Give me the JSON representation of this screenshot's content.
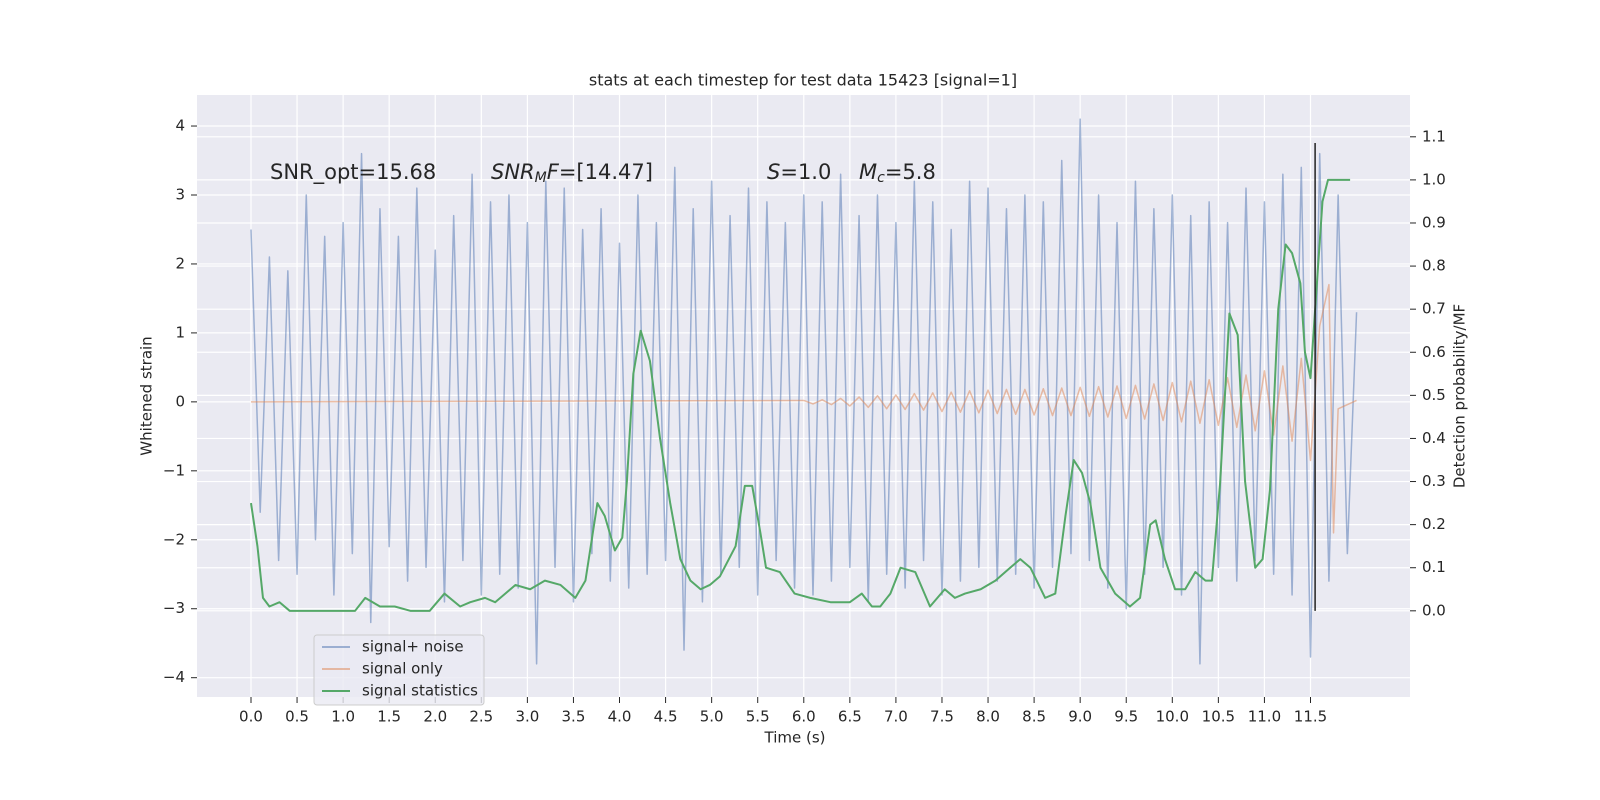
{
  "chart_data": {
    "type": "line",
    "title": "stats at each timestep for test data 15423 [signal=1]",
    "xlabel": "Time (s)",
    "ylabel": "Whitened strain",
    "y2label": "Detection probability/MF",
    "xlim": [
      -0.586,
      12.58
    ],
    "ylim": [
      -4.28,
      4.45
    ],
    "y2lim": [
      -0.2,
      1.197
    ],
    "grid": true,
    "legend": "lower left",
    "xticks": [
      {
        "value": 0,
        "label": "0.0"
      },
      0.5,
      {
        "value": 1,
        "label": "1.0"
      },
      1.5,
      {
        "value": 2,
        "label": "2.0"
      },
      2.5,
      {
        "value": 3,
        "label": "3.0"
      },
      3.5,
      {
        "value": 4,
        "label": "4.0"
      },
      4.5,
      {
        "value": 5,
        "label": "5.0"
      },
      5.5,
      {
        "value": 6,
        "label": "6.0"
      },
      6.5,
      {
        "value": 7,
        "label": "7.0"
      },
      7.5,
      {
        "value": 8,
        "label": "8.0"
      },
      8.5,
      {
        "value": 9,
        "label": "9.0"
      },
      9.5,
      {
        "value": 10,
        "label": "10.0"
      },
      10.5,
      {
        "value": 11,
        "label": "11.0"
      },
      11.5
    ],
    "yticks": [
      {
        "value": -4,
        "label": "−4"
      },
      {
        "value": -3,
        "label": "−3"
      },
      {
        "value": -2,
        "label": "−2"
      },
      {
        "value": -1,
        "label": "−1"
      },
      0,
      1,
      2,
      3,
      4
    ],
    "y2ticks": [
      {
        "value": 0,
        "label": "0.0"
      },
      0.1,
      0.2,
      0.3,
      0.4,
      0.5,
      0.6,
      0.7,
      0.8,
      0.9,
      {
        "value": 1,
        "label": "1.0"
      },
      1.1
    ],
    "annotations": [
      [
        {
          "text": "SNR_opt=15.68",
          "style": "normal"
        }
      ],
      [
        {
          "text": "SNR",
          "style": "italic"
        },
        {
          "text": "M",
          "style": "sub"
        },
        {
          "text": "F",
          "style": "italic"
        },
        {
          "text": "=[14.47]",
          "style": "normal"
        }
      ],
      [
        {
          "text": "S",
          "style": "italic"
        },
        {
          "text": "=1.0",
          "style": "normal"
        }
      ],
      [
        {
          "text": "M",
          "style": "italic"
        },
        {
          "text": "c",
          "style": "sub"
        },
        {
          "text": "=5.8",
          "style": "normal"
        }
      ]
    ],
    "vline_x": 11.55,
    "series": [
      {
        "name": "signal+ noise",
        "color": "#4c72b0",
        "opacity": 0.5,
        "x": [
          0,
          0.1,
          0.2,
          0.3,
          0.4,
          0.5,
          0.6,
          0.7,
          0.8,
          0.9,
          1,
          1.1,
          1.2,
          1.3,
          1.4,
          1.5,
          1.6,
          1.7,
          1.8,
          1.9,
          2,
          2.1,
          2.2,
          2.3,
          2.4,
          2.5,
          2.6,
          2.7,
          2.8,
          2.9,
          3,
          3.1,
          3.2,
          3.3,
          3.4,
          3.5,
          3.6,
          3.7,
          3.8,
          3.9,
          4,
          4.1,
          4.2,
          4.3,
          4.4,
          4.5,
          4.6,
          4.7,
          4.8,
          4.9,
          5,
          5.1,
          5.2,
          5.3,
          5.4,
          5.5,
          5.6,
          5.7,
          5.8,
          5.9,
          6,
          6.1,
          6.2,
          6.3,
          6.4,
          6.5,
          6.6,
          6.7,
          6.8,
          6.9,
          7,
          7.1,
          7.2,
          7.3,
          7.4,
          7.5,
          7.6,
          7.7,
          7.8,
          7.9,
          8,
          8.1,
          8.2,
          8.3,
          8.4,
          8.5,
          8.6,
          8.7,
          8.8,
          8.9,
          9,
          9.1,
          9.2,
          9.3,
          9.4,
          9.5,
          9.6,
          9.7,
          9.8,
          9.9,
          10,
          10.1,
          10.2,
          10.3,
          10.4,
          10.5,
          10.6,
          10.7,
          10.8,
          10.9,
          11,
          11.1,
          11.2,
          11.3,
          11.4,
          11.5,
          11.6,
          11.7,
          11.8,
          11.9,
          12
        ],
        "values": [
          2.5,
          -1.6,
          2.1,
          -2.3,
          1.9,
          -2.5,
          3.0,
          -2.0,
          2.4,
          -2.8,
          2.6,
          -2.2,
          3.6,
          -3.2,
          2.8,
          -2.1,
          2.4,
          -2.6,
          3.1,
          -2.4,
          2.2,
          -2.9,
          2.7,
          -2.3,
          3.3,
          -2.8,
          2.9,
          -2.5,
          3.0,
          -2.7,
          2.6,
          -3.8,
          3.2,
          -2.4,
          3.1,
          -2.9,
          2.5,
          -2.2,
          2.8,
          -2.6,
          2.3,
          -2.7,
          3.0,
          -2.5,
          2.6,
          -2.3,
          3.4,
          -3.6,
          2.8,
          -2.9,
          3.2,
          -2.5,
          2.7,
          -2.4,
          3.1,
          -2.8,
          2.9,
          -2.3,
          2.6,
          -2.7,
          3.0,
          -2.8,
          2.9,
          -2.6,
          3.3,
          -2.4,
          2.7,
          -2.9,
          3.0,
          -2.5,
          2.6,
          -2.7,
          3.2,
          -2.3,
          2.9,
          -2.8,
          2.5,
          -2.6,
          3.2,
          -2.4,
          3.1,
          -2.6,
          2.8,
          -2.5,
          3.0,
          -2.7,
          2.9,
          -2.4,
          3.5,
          -2.2,
          4.1,
          -2.3,
          3.0,
          -2.7,
          2.6,
          -3.0,
          3.2,
          -2.5,
          2.8,
          -2.4,
          3.0,
          -2.8,
          2.7,
          -3.8,
          2.9,
          -2.4,
          2.6,
          -2.6,
          3.1,
          -2.3,
          2.9,
          -2.5,
          3.3,
          -2.8,
          3.4,
          -3.7,
          3.6,
          -2.6,
          3.0,
          -2.2,
          1.3
        ]
      },
      {
        "name": "signal only",
        "color": "#dd8452",
        "opacity": 0.5,
        "x": [
          0,
          6,
          6.1,
          6.2,
          6.3,
          6.4,
          6.5,
          6.6,
          6.7,
          6.8,
          6.9,
          7,
          7.1,
          7.2,
          7.3,
          7.4,
          7.5,
          7.6,
          7.7,
          7.8,
          7.9,
          8,
          8.1,
          8.2,
          8.3,
          8.4,
          8.5,
          8.6,
          8.7,
          8.8,
          8.9,
          9,
          9.1,
          9.2,
          9.3,
          9.4,
          9.5,
          9.6,
          9.7,
          9.8,
          9.9,
          10,
          10.1,
          10.2,
          10.3,
          10.4,
          10.5,
          10.6,
          10.7,
          10.8,
          10.9,
          11,
          11.1,
          11.2,
          11.3,
          11.4,
          11.5,
          11.6,
          11.7,
          11.75,
          11.8,
          12
        ],
        "values": [
          0,
          0.02,
          -0.03,
          0.03,
          -0.04,
          0.05,
          -0.06,
          0.07,
          -0.08,
          0.09,
          -0.1,
          0.1,
          -0.11,
          0.12,
          -0.12,
          0.13,
          -0.14,
          0.14,
          -0.15,
          0.16,
          -0.16,
          0.17,
          -0.17,
          0.18,
          -0.18,
          0.18,
          -0.19,
          0.19,
          -0.2,
          0.2,
          -0.2,
          0.21,
          -0.21,
          0.22,
          -0.22,
          0.23,
          -0.24,
          0.24,
          -0.25,
          0.26,
          -0.27,
          0.28,
          -0.29,
          0.3,
          -0.31,
          0.32,
          -0.34,
          0.35,
          -0.37,
          0.39,
          -0.42,
          0.45,
          -0.48,
          0.52,
          -0.57,
          0.63,
          -0.85,
          1.1,
          1.7,
          -1.9,
          -0.1,
          0.02
        ]
      },
      {
        "name": "signal statistics",
        "color": "#55a868",
        "opacity": 1,
        "axis": "y2",
        "x": [
          0,
          0.07,
          0.13,
          0.2,
          0.31,
          0.42,
          0.75,
          1.13,
          1.24,
          1.4,
          1.56,
          1.73,
          1.94,
          2.1,
          2.27,
          2.38,
          2.54,
          2.65,
          2.76,
          2.87,
          3.03,
          3.19,
          3.36,
          3.52,
          3.63,
          3.76,
          3.84,
          3.95,
          4.03,
          4.08,
          4.15,
          4.23,
          4.33,
          4.44,
          4.55,
          4.66,
          4.77,
          4.88,
          4.98,
          5.09,
          5.26,
          5.36,
          5.44,
          5.53,
          5.59,
          5.74,
          5.9,
          6.07,
          6.29,
          6.5,
          6.63,
          6.74,
          6.83,
          6.94,
          7.05,
          7.21,
          7.37,
          7.53,
          7.64,
          7.75,
          7.92,
          8.08,
          8.24,
          8.35,
          8.46,
          8.62,
          8.73,
          8.84,
          8.93,
          9.02,
          9.11,
          9.22,
          9.38,
          9.54,
          9.65,
          9.76,
          9.82,
          9.92,
          10.03,
          10.14,
          10.25,
          10.36,
          10.43,
          10.52,
          10.62,
          10.71,
          10.79,
          10.9,
          10.98,
          11.06,
          11.15,
          11.23,
          11.3,
          11.39,
          11.44,
          11.5,
          11.56,
          11.63,
          11.69,
          11.93
        ],
        "values": [
          0.25,
          0.15,
          0.03,
          0.01,
          0.02,
          0,
          0,
          0,
          0.03,
          0.01,
          0.01,
          0,
          0,
          0.04,
          0.01,
          0.02,
          0.03,
          0.02,
          0.04,
          0.06,
          0.05,
          0.07,
          0.06,
          0.03,
          0.07,
          0.25,
          0.22,
          0.14,
          0.17,
          0.3,
          0.55,
          0.65,
          0.58,
          0.4,
          0.25,
          0.12,
          0.07,
          0.05,
          0.06,
          0.08,
          0.15,
          0.29,
          0.29,
          0.18,
          0.1,
          0.09,
          0.04,
          0.03,
          0.02,
          0.02,
          0.04,
          0.01,
          0.01,
          0.04,
          0.1,
          0.09,
          0.01,
          0.05,
          0.03,
          0.04,
          0.05,
          0.07,
          0.1,
          0.12,
          0.1,
          0.03,
          0.04,
          0.22,
          0.35,
          0.32,
          0.25,
          0.1,
          0.04,
          0.01,
          0.03,
          0.2,
          0.21,
          0.12,
          0.05,
          0.05,
          0.09,
          0.07,
          0.07,
          0.3,
          0.69,
          0.64,
          0.3,
          0.1,
          0.12,
          0.28,
          0.7,
          0.85,
          0.83,
          0.76,
          0.6,
          0.54,
          0.73,
          0.95,
          1.0,
          1.0
        ]
      }
    ]
  }
}
